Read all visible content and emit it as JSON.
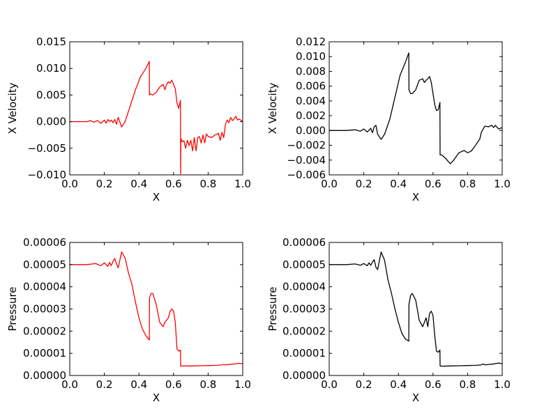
{
  "chart_data": [
    {
      "type": "line",
      "xlabel": "X",
      "ylabel": "X Velocity",
      "xlim": [
        0.0,
        1.0
      ],
      "ylim": [
        -0.01,
        0.015
      ],
      "xticks": [
        "0.0",
        "0.2",
        "0.4",
        "0.6",
        "0.8",
        "1.0"
      ],
      "yticks": [
        "−0.010",
        "−0.005",
        "0.000",
        "0.005",
        "0.010",
        "0.015"
      ],
      "grid": false,
      "series": [
        {
          "color": "#ff0000",
          "x": [
            0.0,
            0.05,
            0.1,
            0.12,
            0.14,
            0.16,
            0.18,
            0.2,
            0.21,
            0.22,
            0.23,
            0.24,
            0.25,
            0.26,
            0.27,
            0.28,
            0.29,
            0.3,
            0.32,
            0.35,
            0.38,
            0.41,
            0.44,
            0.46,
            0.461,
            0.465,
            0.48,
            0.5,
            0.52,
            0.54,
            0.55,
            0.56,
            0.57,
            0.58,
            0.59,
            0.6,
            0.61,
            0.62,
            0.63,
            0.64,
            0.641,
            0.642,
            0.645,
            0.65,
            0.66,
            0.67,
            0.68,
            0.69,
            0.7,
            0.71,
            0.72,
            0.73,
            0.74,
            0.75,
            0.76,
            0.77,
            0.78,
            0.79,
            0.8,
            0.82,
            0.84,
            0.86,
            0.87,
            0.88,
            0.89,
            0.9,
            0.91,
            0.92,
            0.93,
            0.94,
            0.95,
            0.96,
            0.97,
            0.98,
            1.0
          ],
          "y": [
            0.0,
            0.0,
            0.0,
            0.0002,
            -0.0001,
            0.0002,
            -0.0003,
            0.0003,
            -0.0003,
            0.0004,
            0.0,
            0.0003,
            -0.0002,
            0.0004,
            -0.0005,
            0.0008,
            -0.0001,
            -0.001,
            0.0,
            0.003,
            0.006,
            0.0085,
            0.01,
            0.0113,
            0.005,
            0.0052,
            0.005,
            0.0055,
            0.0065,
            0.007,
            0.006,
            0.007,
            0.0075,
            0.0072,
            0.0078,
            0.007,
            0.0062,
            0.0035,
            0.0025,
            0.004,
            -0.0098,
            -0.0035,
            -0.0033,
            -0.0038,
            -0.0036,
            -0.005,
            -0.0035,
            -0.0045,
            -0.0035,
            -0.0055,
            -0.003,
            -0.0055,
            -0.003,
            -0.0028,
            -0.004,
            -0.0025,
            -0.004,
            -0.0023,
            -0.0028,
            -0.003,
            -0.0025,
            -0.0022,
            -0.0035,
            -0.002,
            -0.003,
            -0.0005,
            0.0003,
            -0.0002,
            0.0008,
            0.0002,
            0.0005,
            0.001,
            0.0003,
            0.0005,
            0.0
          ]
        }
      ]
    },
    {
      "type": "line",
      "xlabel": "X",
      "ylabel": "X Velocity",
      "xlim": [
        0.0,
        1.0
      ],
      "ylim": [
        -0.006,
        0.012
      ],
      "xticks": [
        "0.0",
        "0.2",
        "0.4",
        "0.6",
        "0.8",
        "1.0"
      ],
      "yticks": [
        "−0.006",
        "−0.004",
        "−0.002",
        "0.000",
        "0.002",
        "0.004",
        "0.006",
        "0.008",
        "0.010",
        "0.012"
      ],
      "grid": false,
      "series": [
        {
          "color": "#000000",
          "x": [
            0.0,
            0.1,
            0.15,
            0.18,
            0.2,
            0.22,
            0.24,
            0.25,
            0.26,
            0.27,
            0.28,
            0.3,
            0.32,
            0.35,
            0.38,
            0.41,
            0.44,
            0.46,
            0.461,
            0.47,
            0.48,
            0.5,
            0.52,
            0.54,
            0.55,
            0.56,
            0.57,
            0.58,
            0.59,
            0.6,
            0.61,
            0.62,
            0.63,
            0.64,
            0.641,
            0.65,
            0.67,
            0.7,
            0.72,
            0.75,
            0.78,
            0.8,
            0.82,
            0.84,
            0.86,
            0.87,
            0.88,
            0.9,
            0.92,
            0.94,
            0.95,
            0.96,
            0.98,
            1.0
          ],
          "y": [
            0.0,
            0.0,
            0.0001,
            -0.0001,
            0.0002,
            -0.0002,
            0.0003,
            -0.0003,
            0.0005,
            0.0007,
            -0.0005,
            -0.0012,
            -0.0005,
            0.0015,
            0.0045,
            0.0075,
            0.0092,
            0.0105,
            0.0055,
            0.005,
            0.005,
            0.0055,
            0.0068,
            0.007,
            0.0065,
            0.0068,
            0.007,
            0.0073,
            0.0065,
            0.005,
            0.0035,
            0.0027,
            0.0028,
            0.0038,
            -0.0033,
            -0.0033,
            -0.0037,
            -0.0045,
            -0.004,
            -0.003,
            -0.0027,
            -0.003,
            -0.0028,
            -0.0022,
            -0.0015,
            -0.0012,
            -0.0002,
            0.0006,
            0.0005,
            0.0007,
            0.0004,
            0.0007,
            0.0002,
            0.0004
          ]
        }
      ]
    },
    {
      "type": "line",
      "xlabel": "X",
      "ylabel": "Pressure",
      "xlim": [
        0.0,
        1.0
      ],
      "ylim": [
        0.0,
        6e-05
      ],
      "xticks": [
        "0.0",
        "0.2",
        "0.4",
        "0.6",
        "0.8",
        "1.0"
      ],
      "yticks": [
        "0.00000",
        "0.00001",
        "0.00002",
        "0.00003",
        "0.00004",
        "0.00005",
        "0.00006"
      ],
      "grid": false,
      "series": [
        {
          "color": "#ff0000",
          "x": [
            0.0,
            0.1,
            0.15,
            0.18,
            0.2,
            0.22,
            0.23,
            0.24,
            0.25,
            0.26,
            0.27,
            0.28,
            0.3,
            0.32,
            0.34,
            0.36,
            0.38,
            0.4,
            0.42,
            0.44,
            0.46,
            0.461,
            0.47,
            0.48,
            0.5,
            0.52,
            0.54,
            0.55,
            0.56,
            0.57,
            0.58,
            0.59,
            0.6,
            0.61,
            0.62,
            0.63,
            0.64,
            0.641,
            0.645,
            0.65,
            0.7,
            0.75,
            0.8,
            0.85,
            0.88,
            0.89,
            0.9,
            0.95,
            0.98,
            1.0
          ],
          "y": [
            5e-05,
            5e-05,
            5.05e-05,
            4.95e-05,
            5.08e-05,
            4.92e-05,
            5.1e-05,
            4.95e-05,
            5.15e-05,
            5.28e-05,
            5.05e-05,
            4.85e-05,
            5.57e-05,
            5.3e-05,
            4.6e-05,
            4.1e-05,
            3.3e-05,
            2.6e-05,
            2.1e-05,
            1.8e-05,
            1.6e-05,
            3.5e-05,
            3.7e-05,
            3.7e-05,
            3.2e-05,
            2.4e-05,
            2.2e-05,
            2.4e-05,
            2.5e-05,
            2.6e-05,
            2.9e-05,
            3e-05,
            2.9e-05,
            2.4e-05,
            1.2e-05,
            1.1e-05,
            1.15e-05,
            4.3e-06,
            4.3e-06,
            4.3e-06,
            4.3e-06,
            4.4e-06,
            4.5e-06,
            4.6e-06,
            4.8e-06,
            5e-06,
            4.8e-06,
            5.2e-06,
            5.5e-06,
            5.3e-06
          ]
        }
      ]
    },
    {
      "type": "line",
      "xlabel": "X",
      "ylabel": "Pressure",
      "xlim": [
        0.0,
        1.0
      ],
      "ylim": [
        0.0,
        6e-05
      ],
      "xticks": [
        "0.0",
        "0.2",
        "0.4",
        "0.6",
        "0.8",
        "1.0"
      ],
      "yticks": [
        "0.00000",
        "0.00001",
        "0.00002",
        "0.00003",
        "0.00004",
        "0.00005",
        "0.00006"
      ],
      "grid": false,
      "series": [
        {
          "color": "#000000",
          "x": [
            0.0,
            0.1,
            0.15,
            0.18,
            0.2,
            0.22,
            0.23,
            0.24,
            0.25,
            0.26,
            0.27,
            0.28,
            0.3,
            0.32,
            0.34,
            0.36,
            0.38,
            0.4,
            0.42,
            0.44,
            0.46,
            0.461,
            0.47,
            0.48,
            0.5,
            0.52,
            0.54,
            0.55,
            0.56,
            0.57,
            0.58,
            0.59,
            0.6,
            0.61,
            0.62,
            0.63,
            0.64,
            0.641,
            0.645,
            0.65,
            0.7,
            0.75,
            0.8,
            0.85,
            0.88,
            0.89,
            0.9,
            0.95,
            0.98,
            1.0
          ],
          "y": [
            5e-05,
            5e-05,
            5.03e-05,
            4.97e-05,
            5.05e-05,
            4.95e-05,
            5.08e-05,
            4.97e-05,
            5.12e-05,
            5.22e-05,
            4.88e-05,
            4.78e-05,
            5.57e-05,
            5.2e-05,
            4.3e-05,
            3.7e-05,
            3e-05,
            2.4e-05,
            1.9e-05,
            1.65e-05,
            1.55e-05,
            3.2e-05,
            3.6e-05,
            3.7e-05,
            3.4e-05,
            2.5e-05,
            2.2e-05,
            2.4e-05,
            2.6e-05,
            2.2e-05,
            2.8e-05,
            2.9e-05,
            2.7e-05,
            1.8e-05,
            1.1e-05,
            1.05e-05,
            1.15e-05,
            4.3e-06,
            4.3e-06,
            4.2e-06,
            4.3e-06,
            4.4e-06,
            4.5e-06,
            4.6e-06,
            4.8e-06,
            5.2e-06,
            4.8e-06,
            5.2e-06,
            5.6e-06,
            5.3e-06
          ]
        }
      ]
    }
  ]
}
